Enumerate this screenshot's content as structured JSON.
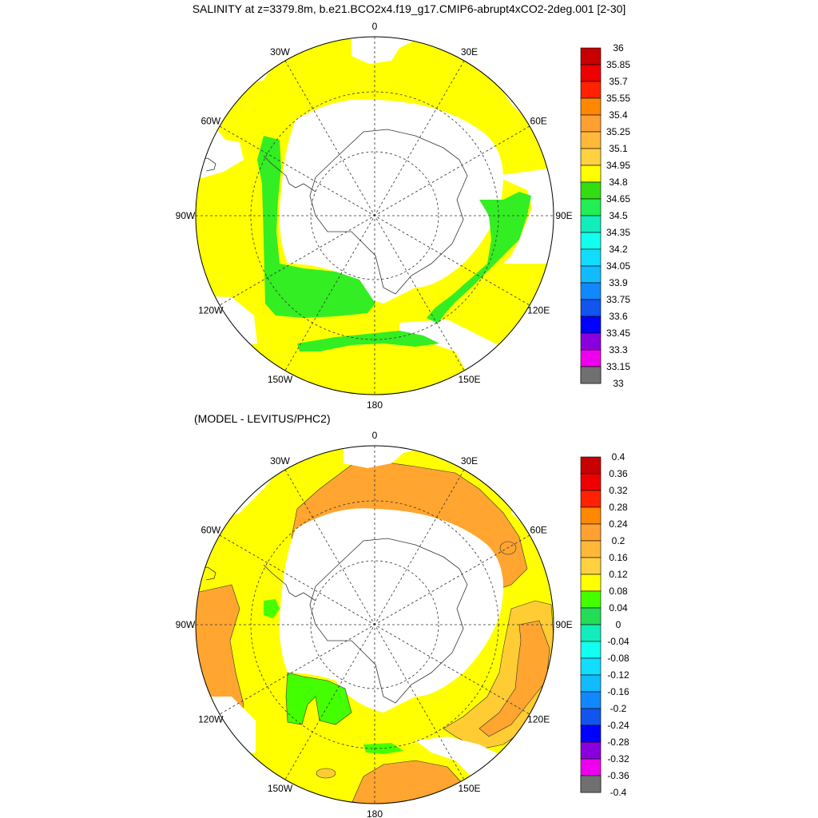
{
  "figure": {
    "title": "SALINITY at z=3379.8m, b.e21.BCO2x4.f19_g17.CMIP6-abrupt4xCO2-2deg.001 [2-30]",
    "subtitle": "(MODEL - LEVITUS/PHC2)"
  },
  "lon_labels": [
    "0",
    "30E",
    "60E",
    "90E",
    "120E",
    "150E",
    "180",
    "150W",
    "120W",
    "90W",
    "60W",
    "30W"
  ],
  "colors": {
    "background": "#ffffff",
    "yellow": "#ffff00",
    "green": "#33ee22",
    "orange": "#ffa530",
    "light_orange": "#ffcc33",
    "land": "#ffffff"
  },
  "colorbars": [
    {
      "name": "salinity",
      "labels": [
        "36",
        "35.85",
        "35.7",
        "35.55",
        "35.4",
        "35.25",
        "35.1",
        "34.95",
        "34.8",
        "34.65",
        "34.5",
        "34.35",
        "34.2",
        "34.05",
        "33.9",
        "33.75",
        "33.6",
        "33.45",
        "33.3",
        "33.15",
        "33"
      ],
      "colors": [
        "#c80000",
        "#ee0000",
        "#ff2200",
        "#ff8800",
        "#ffa030",
        "#ffb838",
        "#ffd040",
        "#ffff00",
        "#33dd11",
        "#22ee55",
        "#11eebb",
        "#11ffee",
        "#11ddff",
        "#11bbff",
        "#1188ff",
        "#1155ee",
        "#0000ff",
        "#8800dd",
        "#ee00ee",
        "#d8d8d8"
      ]
    },
    {
      "name": "difference",
      "labels": [
        "0.4",
        "0.36",
        "0.32",
        "0.28",
        "0.24",
        "0.2",
        "0.16",
        "0.12",
        "0.08",
        "0.04",
        "0",
        "-0.04",
        "-0.08",
        "-0.12",
        "-0.16",
        "-0.2",
        "-0.24",
        "-0.28",
        "-0.32",
        "-0.36",
        "-0.4"
      ],
      "colors": [
        "#c80000",
        "#ee0000",
        "#ff2200",
        "#ff8800",
        "#ffa030",
        "#ffb838",
        "#ffd040",
        "#ffff00",
        "#44ff00",
        "#22dd55",
        "#11eebb",
        "#11ffee",
        "#11ddff",
        "#11bbff",
        "#1188ff",
        "#1155ee",
        "#0000ff",
        "#8800dd",
        "#ee00ee",
        "#d8d8d8"
      ]
    }
  ]
}
